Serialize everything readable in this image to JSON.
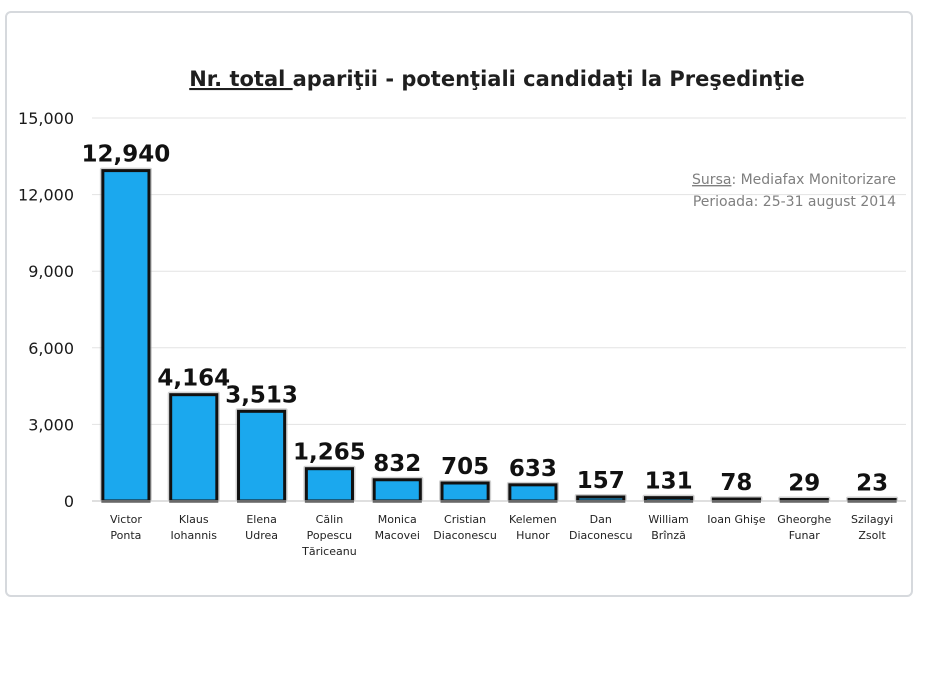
{
  "chart_data": {
    "type": "bar",
    "title_underlined": "Nr. total ",
    "title_rest": "apariţii - potenţiali candidaţi la Preşedinţie",
    "source_label": "Sursa",
    "source_text": ": Mediafax Monitorizare",
    "period_text": "Perioada: 25-31 august 2014",
    "categories": [
      [
        "Victor",
        "Ponta"
      ],
      [
        "Klaus",
        "Iohannis"
      ],
      [
        "Elena",
        "Udrea"
      ],
      [
        "Călin",
        "Popescu",
        "Tăriceanu"
      ],
      [
        "Monica",
        "Macovei"
      ],
      [
        "Cristian",
        "Diaconescu"
      ],
      [
        "Kelemen",
        "Hunor"
      ],
      [
        "Dan",
        "Diaconescu"
      ],
      [
        "William",
        "Brînză"
      ],
      [
        "Ioan Ghişe"
      ],
      [
        "Gheorghe",
        "Funar"
      ],
      [
        "Szilagyi",
        "Zsolt"
      ]
    ],
    "values": [
      12940,
      4164,
      3513,
      1265,
      832,
      705,
      633,
      157,
      131,
      78,
      29,
      23
    ],
    "value_labels": [
      "12,940",
      "4,164",
      "3,513",
      "1,265",
      "832",
      "705",
      "633",
      "157",
      "131",
      "78",
      "29",
      "23"
    ],
    "ylim": [
      0,
      15000
    ],
    "yticks": [
      0,
      3000,
      6000,
      9000,
      12000,
      15000
    ],
    "ytick_labels": [
      "0",
      "3,000",
      "6,000",
      "9,000",
      "12,000",
      "15,000"
    ],
    "grid": true,
    "bar_color": "#1ba8ee",
    "bar_border_color": "#111111"
  }
}
